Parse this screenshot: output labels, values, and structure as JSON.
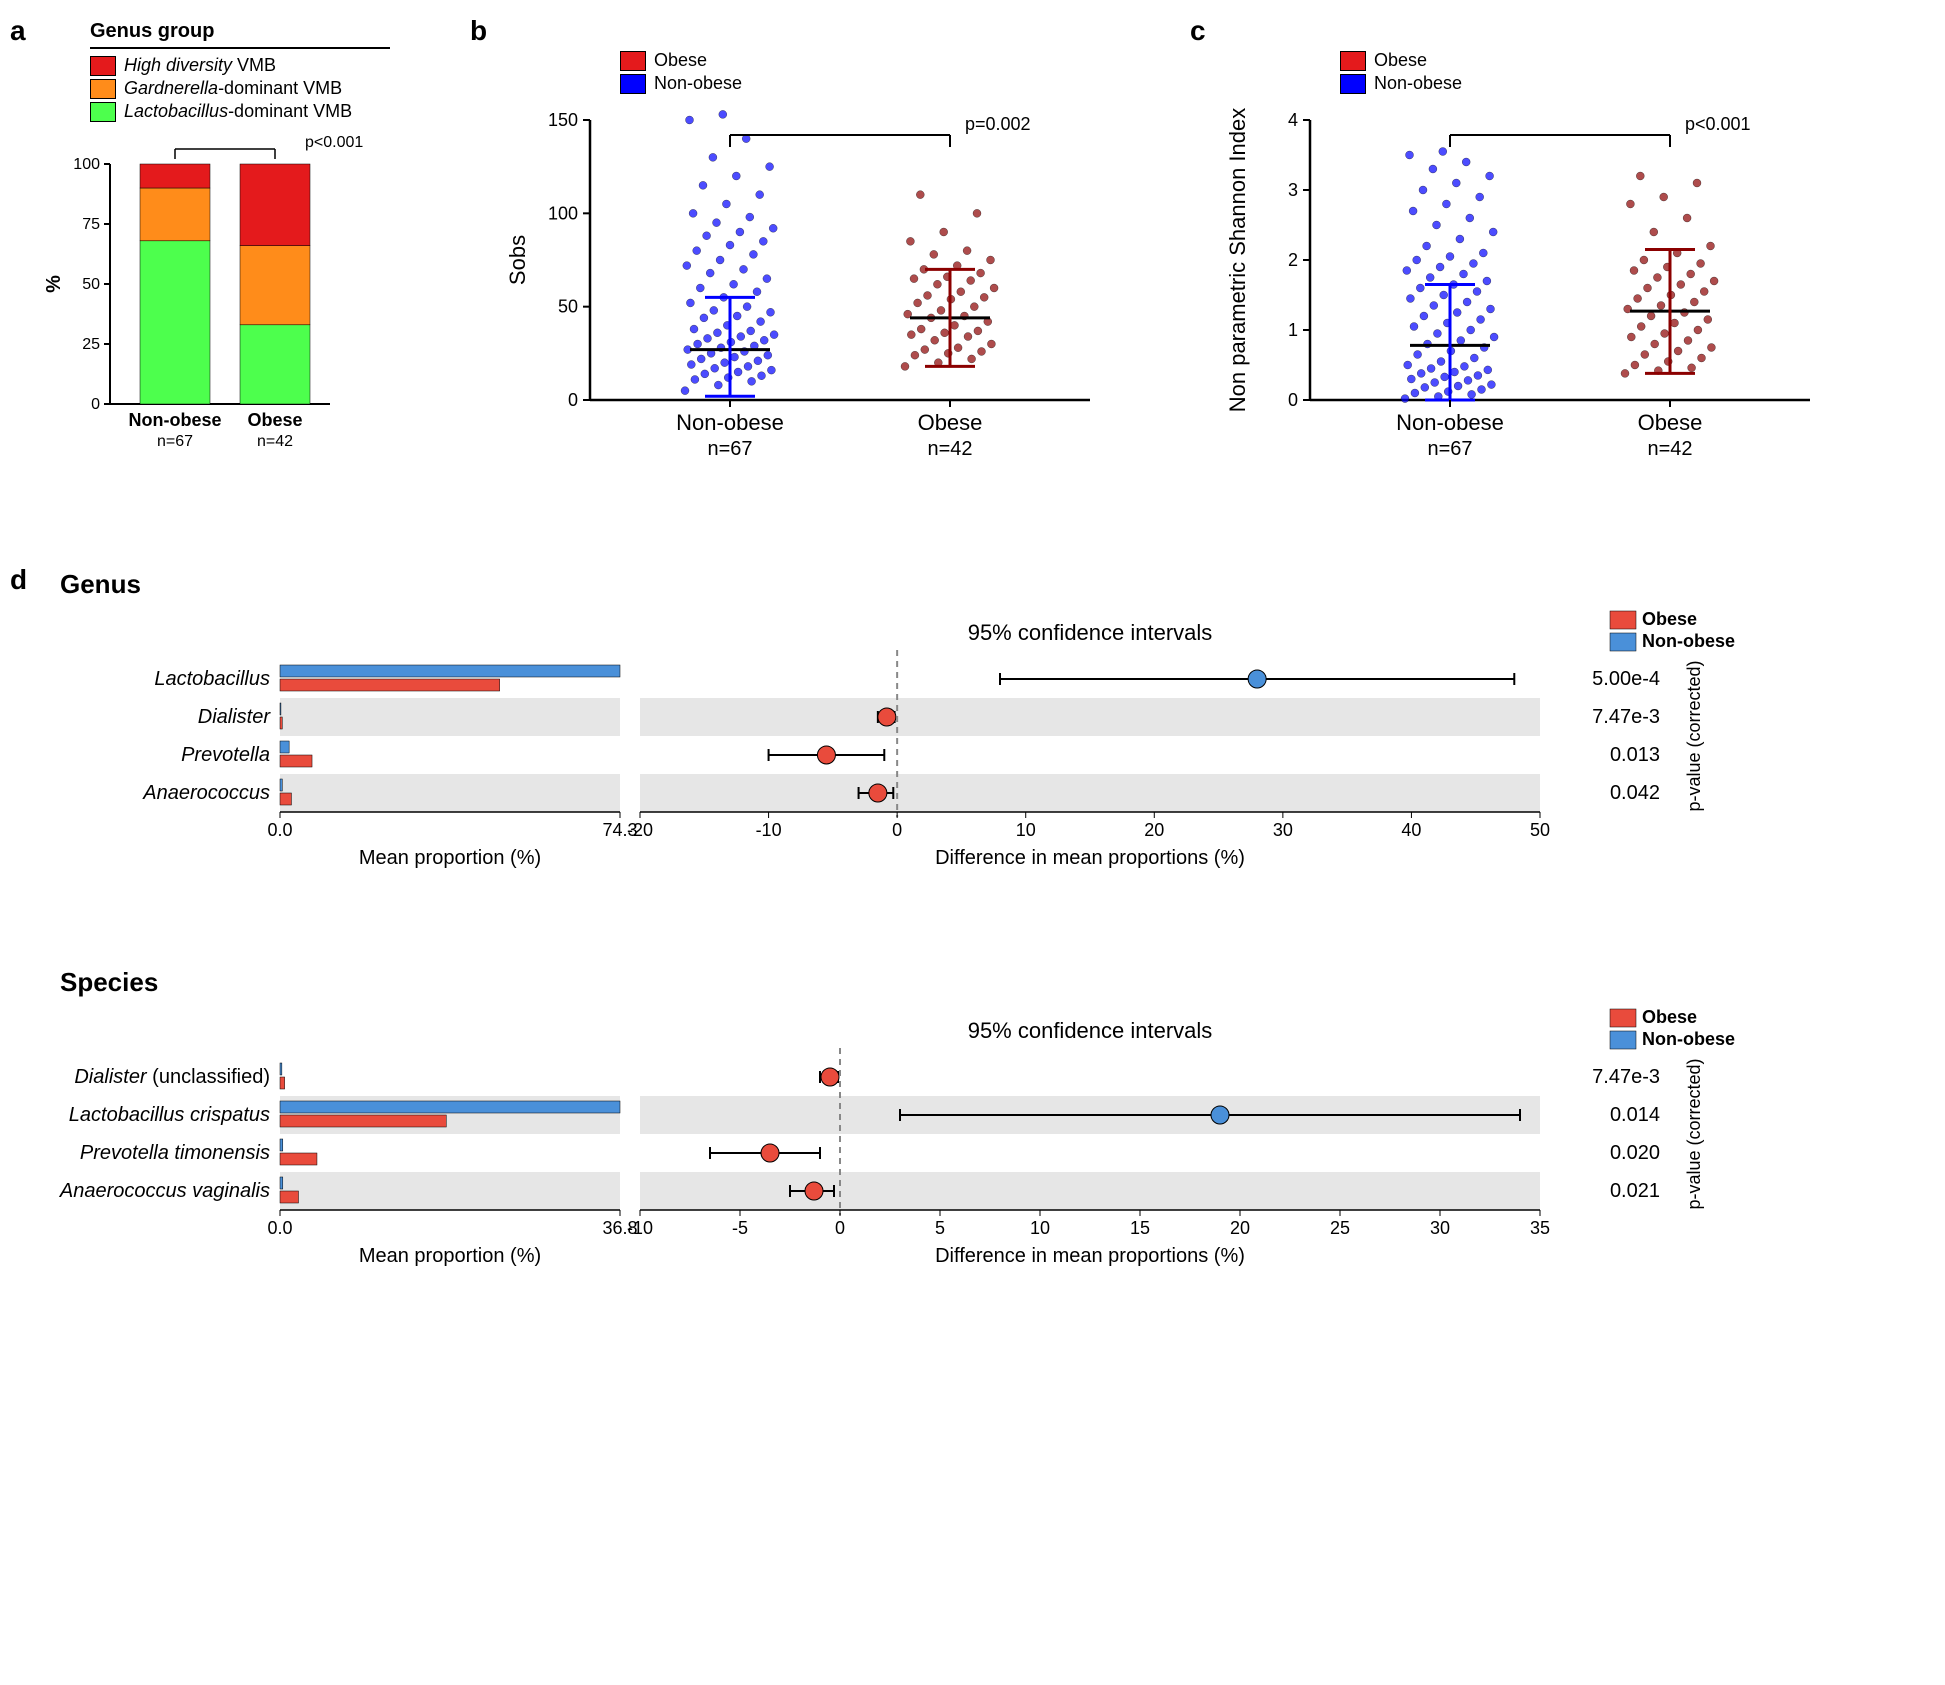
{
  "panel_labels": {
    "a": "a",
    "b": "b",
    "c": "c",
    "d": "d"
  },
  "colors": {
    "red": "#e41a1c",
    "orange": "#ff8c1a",
    "green": "#4dff4d",
    "blue_scatter": "#0000ff",
    "red_scatter": "#8b0000",
    "obese_bar": "#e94b3c",
    "nonobese_bar": "#4a90d9",
    "row_band": "#e6e6e6",
    "axis": "#000000"
  },
  "panel_a": {
    "legend_title": "Genus group",
    "legend": [
      {
        "label_italic": "High diversity",
        "label_rest": " VMB",
        "color": "#e41a1c"
      },
      {
        "label_italic": "Gardnerella",
        "label_rest": "-dominant VMB",
        "color": "#ff8c1a"
      },
      {
        "label_italic": "Lactobacillus",
        "label_rest": "-dominant VMB",
        "color": "#4dff4d"
      }
    ],
    "pvalue": "p<0.001",
    "ylabel": "%",
    "yticks": [
      0,
      25,
      50,
      75,
      100
    ],
    "bars": [
      {
        "label": "Non-obese",
        "n": "n=67",
        "segments": [
          {
            "v": 68,
            "c": "#4dff4d"
          },
          {
            "v": 22,
            "c": "#ff8c1a"
          },
          {
            "v": 10,
            "c": "#e41a1c"
          }
        ]
      },
      {
        "label": "Obese",
        "n": "n=42",
        "segments": [
          {
            "v": 33,
            "c": "#4dff4d"
          },
          {
            "v": 33,
            "c": "#ff8c1a"
          },
          {
            "v": 34,
            "c": "#e41a1c"
          }
        ]
      }
    ]
  },
  "panel_b": {
    "legend": [
      {
        "label": "Obese",
        "color": "#e41a1c"
      },
      {
        "label": "Non-obese",
        "color": "#0000ff"
      }
    ],
    "pvalue": "p=0.002",
    "ylabel": "Sobs",
    "yticks": [
      0,
      50,
      100,
      150
    ],
    "groups": [
      {
        "label": "Non-obese",
        "n": "n=67",
        "color": "#0000ff",
        "mean": 27,
        "err_lo": 2,
        "err_hi": 55,
        "points": [
          5,
          8,
          10,
          11,
          12,
          13,
          14,
          15,
          16,
          17,
          18,
          19,
          20,
          21,
          22,
          23,
          24,
          25,
          26,
          27,
          28,
          29,
          30,
          31,
          32,
          33,
          34,
          35,
          36,
          37,
          38,
          40,
          42,
          44,
          45,
          47,
          48,
          50,
          52,
          55,
          58,
          60,
          62,
          65,
          68,
          70,
          72,
          75,
          78,
          80,
          83,
          85,
          88,
          90,
          92,
          95,
          98,
          100,
          105,
          110,
          115,
          120,
          125,
          130,
          140,
          150,
          153
        ]
      },
      {
        "label": "Obese",
        "n": "n=42",
        "color": "#8b0000",
        "mean": 44,
        "err_lo": 18,
        "err_hi": 70,
        "points": [
          18,
          20,
          22,
          24,
          25,
          26,
          27,
          28,
          30,
          32,
          34,
          35,
          36,
          37,
          38,
          40,
          42,
          44,
          45,
          46,
          48,
          50,
          52,
          54,
          55,
          56,
          58,
          60,
          62,
          64,
          65,
          66,
          68,
          70,
          72,
          75,
          78,
          80,
          85,
          90,
          100,
          110
        ]
      }
    ]
  },
  "panel_c": {
    "legend": [
      {
        "label": "Obese",
        "color": "#e41a1c"
      },
      {
        "label": "Non-obese",
        "color": "#0000ff"
      }
    ],
    "pvalue": "p<0.001",
    "ylabel": "Non parametric Shannon Index",
    "yticks": [
      0,
      1,
      2,
      3,
      4
    ],
    "groups": [
      {
        "label": "Non-obese",
        "n": "n=67",
        "color": "#0000ff",
        "mean": 0.78,
        "err_lo": 0.0,
        "err_hi": 1.65,
        "points": [
          0.02,
          0.05,
          0.08,
          0.1,
          0.12,
          0.15,
          0.18,
          0.2,
          0.22,
          0.25,
          0.28,
          0.3,
          0.33,
          0.35,
          0.38,
          0.4,
          0.43,
          0.45,
          0.48,
          0.5,
          0.55,
          0.6,
          0.65,
          0.7,
          0.75,
          0.8,
          0.85,
          0.9,
          0.95,
          1.0,
          1.05,
          1.1,
          1.15,
          1.2,
          1.25,
          1.3,
          1.35,
          1.4,
          1.45,
          1.5,
          1.55,
          1.6,
          1.65,
          1.7,
          1.75,
          1.8,
          1.85,
          1.9,
          1.95,
          2.0,
          2.05,
          2.1,
          2.2,
          2.3,
          2.4,
          2.5,
          2.6,
          2.7,
          2.8,
          2.9,
          3.0,
          3.1,
          3.2,
          3.3,
          3.4,
          3.5,
          3.55
        ]
      },
      {
        "label": "Obese",
        "n": "n=42",
        "color": "#8b0000",
        "mean": 1.27,
        "err_lo": 0.38,
        "err_hi": 2.15,
        "points": [
          0.38,
          0.42,
          0.46,
          0.5,
          0.55,
          0.6,
          0.65,
          0.7,
          0.75,
          0.8,
          0.85,
          0.9,
          0.95,
          1.0,
          1.05,
          1.1,
          1.15,
          1.2,
          1.25,
          1.3,
          1.35,
          1.4,
          1.45,
          1.5,
          1.55,
          1.6,
          1.65,
          1.7,
          1.75,
          1.8,
          1.85,
          1.9,
          1.95,
          2.0,
          2.1,
          2.2,
          2.4,
          2.6,
          2.8,
          2.9,
          3.1,
          3.2
        ]
      }
    ]
  },
  "panel_d": {
    "sections": [
      {
        "title": "Genus",
        "ci_title": "95% confidence intervals",
        "legend": [
          {
            "label": "Obese",
            "color": "#e94b3c"
          },
          {
            "label": "Non-obese",
            "color": "#4a90d9"
          }
        ],
        "xlabel_left": "Mean proportion (%)",
        "xlabel_right": "Difference in mean proportions (%)",
        "pval_axis_label": "p-value (corrected)",
        "xlim_left": [
          0,
          74.3
        ],
        "xticks_left": [
          "0.0",
          "74.3"
        ],
        "xlim_right": [
          -20,
          50
        ],
        "xticks_right": [
          -20,
          -10,
          0,
          10,
          20,
          30,
          40,
          50
        ],
        "rows": [
          {
            "name": "Lactobacillus",
            "italic": true,
            "obese": 48,
            "nonobese": 74.3,
            "diff": 28,
            "lo": 8,
            "hi": 48,
            "color": "#4a90d9",
            "pval": "5.00e-4",
            "band": false
          },
          {
            "name": "Dialister",
            "italic": true,
            "obese": 0.5,
            "nonobese": 0.2,
            "diff": -0.8,
            "lo": -1.5,
            "hi": -0.2,
            "color": "#e94b3c",
            "pval": "7.47e-3",
            "band": true
          },
          {
            "name": "Prevotella",
            "italic": true,
            "obese": 7,
            "nonobese": 2,
            "diff": -5.5,
            "lo": -10,
            "hi": -1,
            "color": "#e94b3c",
            "pval": "0.013",
            "band": false
          },
          {
            "name": "Anaerococcus",
            "italic": true,
            "obese": 2.5,
            "nonobese": 0.5,
            "diff": -1.5,
            "lo": -3,
            "hi": -0.3,
            "color": "#e94b3c",
            "pval": "0.042",
            "band": true
          }
        ]
      },
      {
        "title": "Species",
        "ci_title": "95% confidence intervals",
        "legend": [
          {
            "label": "Obese",
            "color": "#e94b3c"
          },
          {
            "label": "Non-obese",
            "color": "#4a90d9"
          }
        ],
        "xlabel_left": "Mean proportion (%)",
        "xlabel_right": "Difference in mean proportions (%)",
        "pval_axis_label": "p-value (corrected)",
        "xlim_left": [
          0,
          36.8
        ],
        "xticks_left": [
          "0.0",
          "36.8"
        ],
        "xlim_right": [
          -10,
          35
        ],
        "xticks_right": [
          -10,
          -5,
          0,
          5,
          10,
          15,
          20,
          25,
          30,
          35
        ],
        "rows": [
          {
            "name": "Dialister",
            "name_suffix": " (unclassified)",
            "italic": true,
            "obese": 0.5,
            "nonobese": 0.2,
            "diff": -0.5,
            "lo": -1,
            "hi": -0.1,
            "color": "#e94b3c",
            "pval": "7.47e-3",
            "band": false
          },
          {
            "name": "Lactobacillus crispatus",
            "italic": true,
            "obese": 18,
            "nonobese": 36.8,
            "diff": 19,
            "lo": 3,
            "hi": 34,
            "color": "#4a90d9",
            "pval": "0.014",
            "band": true
          },
          {
            "name": "Prevotella timonensis",
            "italic": true,
            "obese": 4,
            "nonobese": 0.3,
            "diff": -3.5,
            "lo": -6.5,
            "hi": -1,
            "color": "#e94b3c",
            "pval": "0.020",
            "band": false
          },
          {
            "name": "Anaerococcus vaginalis",
            "italic": true,
            "obese": 2,
            "nonobese": 0.3,
            "diff": -1.3,
            "lo": -2.5,
            "hi": -0.3,
            "color": "#e94b3c",
            "pval": "0.021",
            "band": true
          }
        ]
      }
    ]
  }
}
